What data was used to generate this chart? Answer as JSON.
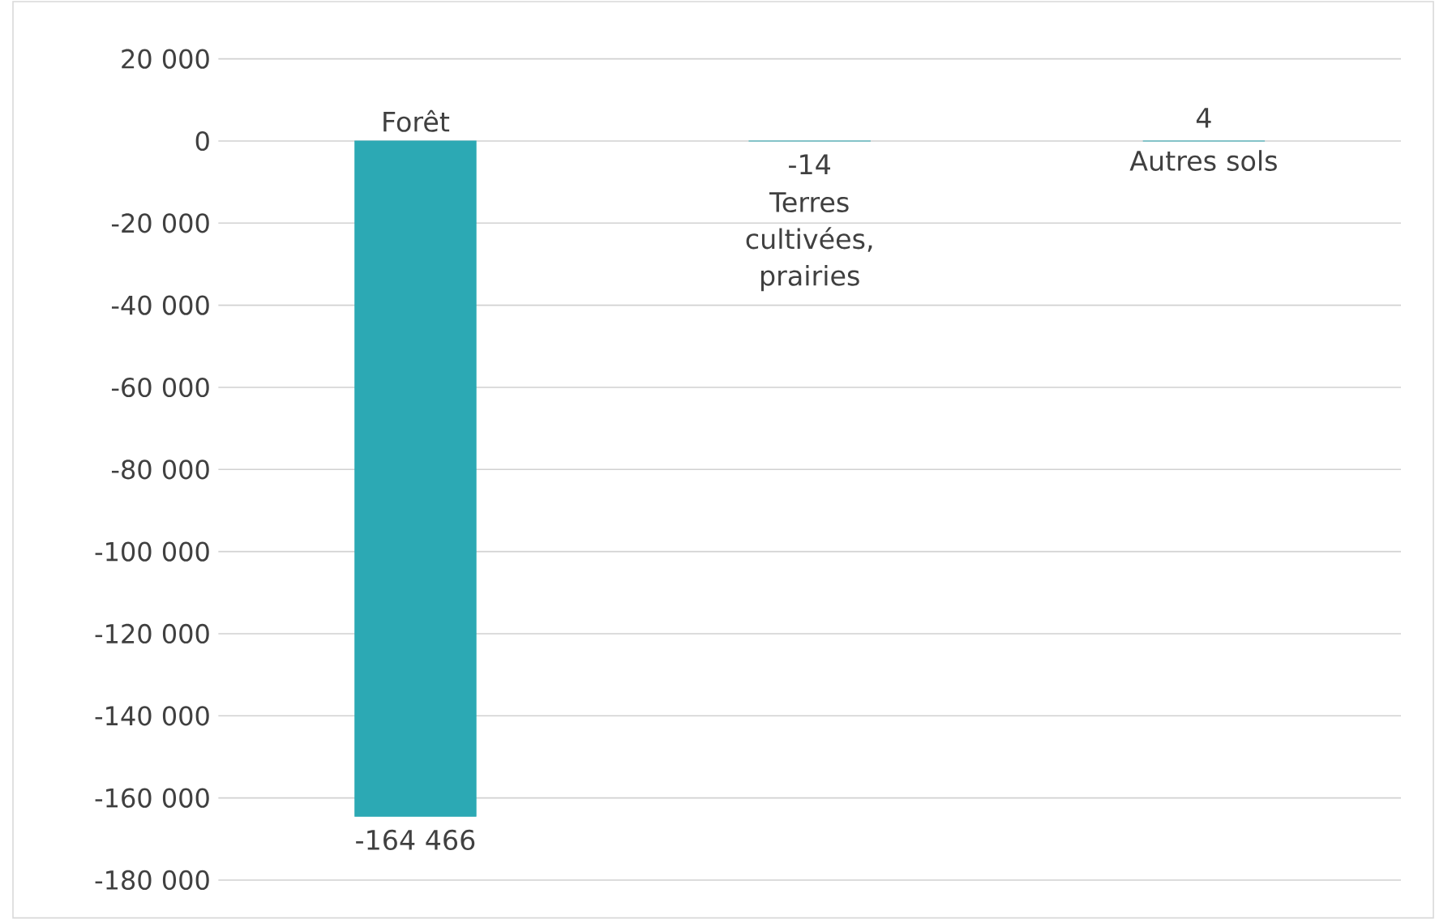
{
  "chart_data": {
    "type": "bar",
    "categories": [
      "Forêt",
      "Terres cultivées, prairies",
      "Autres sols"
    ],
    "values": [
      -164466,
      -14,
      4
    ],
    "value_labels": [
      "-164 466",
      "-14",
      "4"
    ],
    "color": "#2ca9b4",
    "ylim": [
      -180000,
      20000
    ],
    "yticks": [
      {
        "value": -180000,
        "label": "-180 000"
      },
      {
        "value": -160000,
        "label": "-160 000"
      },
      {
        "value": -140000,
        "label": "-140 000"
      },
      {
        "value": -120000,
        "label": "-120 000"
      },
      {
        "value": -100000,
        "label": "-100 000"
      },
      {
        "value": -80000,
        "label": "-80 000"
      },
      {
        "value": -60000,
        "label": "-60 000"
      },
      {
        "value": -40000,
        "label": "-40 000"
      },
      {
        "value": -20000,
        "label": "-20 000"
      },
      {
        "value": 0,
        "label": "0"
      },
      {
        "value": 20000,
        "label": "20 000"
      }
    ],
    "grid": "y"
  }
}
